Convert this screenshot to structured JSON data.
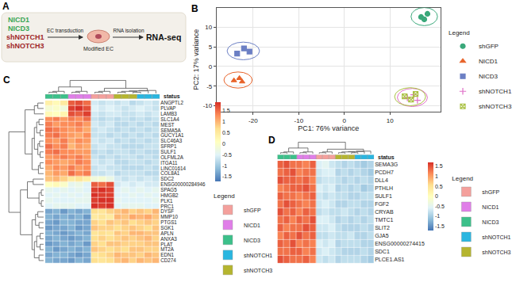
{
  "diagram": {
    "panel_label": "A",
    "constructs_overexpression": [
      "NICD1",
      "NICD3"
    ],
    "constructs_knockdown": [
      "shNOTCH1",
      "shNOTCH3"
    ],
    "steps": [
      "EC transduction",
      "Modified EC",
      "RNA isolation",
      "RNA-seq"
    ]
  },
  "chart_data": [
    {
      "panel_label": "B",
      "type": "scatter",
      "x_label": "PC1: 76% variance",
      "y_label": "PC2: 17% variance",
      "xlim": [
        -28,
        21
      ],
      "ylim": [
        -11.5,
        15
      ],
      "xticks": [
        -20,
        -10,
        0,
        10
      ],
      "yticks": [
        -10,
        -5,
        0,
        5,
        10
      ],
      "grid": true,
      "legend": "right",
      "legend_title": "Legend",
      "series": [
        {
          "name": "shGFP",
          "color": "#3aa87a",
          "marker": "circle",
          "x": [
            16.8,
            18.2,
            17.5
          ],
          "values": [
            12.6,
            13.4,
            12.0
          ]
        },
        {
          "name": "NICD1",
          "color": "#e8632a",
          "marker": "triangle-up",
          "x": [
            -24.2,
            -23.0,
            -22.4
          ],
          "values": [
            -3.6,
            -3.0,
            -3.9
          ]
        },
        {
          "name": "NICD3",
          "color": "#6b7fc4",
          "marker": "square",
          "x": [
            -23.5,
            -22.0,
            -20.8
          ],
          "values": [
            3.3,
            4.6,
            3.8
          ]
        },
        {
          "name": "shNOTCH1",
          "color": "#e070c8",
          "marker": "cross-thin-open",
          "x": [
            13.8,
            15.2,
            16.0
          ],
          "values": [
            -8.0,
            -7.2,
            -8.6
          ]
        },
        {
          "name": "shNOTCH3",
          "color": "#a8c040",
          "marker": "square-x-open",
          "x": [
            13.2,
            14.6,
            15.6
          ],
          "values": [
            -7.6,
            -8.4,
            -7.0
          ]
        }
      ]
    },
    {
      "panel_label": "C",
      "type": "heatmap",
      "status_label": "status",
      "legend_title": "Legend",
      "rows": [
        "ANGPTL2",
        "PLVAP",
        "LAMB3",
        "SLC1A4",
        "MEST",
        "SEMA5A",
        "GUCY1A1",
        "SLC46A3",
        "SFRP1",
        "SULF1",
        "OLFML2A",
        "ITGA11",
        "LINC01614",
        "COL8A1",
        "SDC2",
        "ENSG00000284946",
        "SPAG5",
        "HMGB2",
        "PLK1",
        "PRC1",
        "DYSF",
        "MMP10",
        "PTGS1",
        "SGK1",
        "APLN",
        "ANXA3",
        "PLAT",
        "MT2A",
        "EDN1",
        "CD274"
      ],
      "column_status": [
        "NICD3",
        "NICD3",
        "NICD3",
        "NICD1",
        "NICD1",
        "NICD1",
        "shGFP",
        "shGFP",
        "shGFP",
        "shNOTCH3",
        "shNOTCH3",
        "shNOTCH3",
        "shNOTCH1",
        "shNOTCH1",
        "shNOTCH1"
      ],
      "series": [
        {
          "name": "shGFP",
          "color": "#f4a09c"
        },
        {
          "name": "NICD1",
          "color": "#e07ee8"
        },
        {
          "name": "NICD3",
          "color": "#3cc08a"
        },
        {
          "name": "shNOTCH1",
          "color": "#2ab6e0"
        },
        {
          "name": "shNOTCH3",
          "color": "#b5b52f"
        }
      ],
      "zlim": [
        -1.7,
        1.9
      ],
      "zticks": [
        -1.5,
        -1,
        -0.5,
        0,
        0.5,
        1,
        1.5
      ],
      "cells": [
        [
          0.4,
          0.2,
          0.5,
          1.6,
          1.7,
          1.5,
          -0.6,
          -0.7,
          -0.6,
          -0.7,
          -0.6,
          -0.8,
          -0.7,
          -0.6,
          -0.7
        ],
        [
          -0.1,
          0.0,
          -0.2,
          1.8,
          1.9,
          1.7,
          -0.5,
          -0.6,
          -0.5,
          -0.6,
          -0.7,
          -0.6,
          -0.5,
          -0.6,
          -0.7
        ],
        [
          0.2,
          0.1,
          0.3,
          1.7,
          1.6,
          1.8,
          -0.6,
          -0.7,
          -0.6,
          -0.6,
          -0.7,
          -0.7,
          -0.6,
          -0.7,
          -0.6
        ],
        [
          1.3,
          1.4,
          1.2,
          1.4,
          1.3,
          1.5,
          -0.7,
          -0.8,
          -0.7,
          -0.8,
          -0.7,
          -0.8,
          -0.7,
          -0.8,
          -0.7
        ],
        [
          1.4,
          1.2,
          1.3,
          1.3,
          1.4,
          1.2,
          -0.6,
          -0.7,
          -0.6,
          -0.8,
          -0.8,
          -0.7,
          -0.8,
          -0.7,
          -0.8
        ],
        [
          1.5,
          1.4,
          1.3,
          1.2,
          1.3,
          1.1,
          -0.7,
          -0.6,
          -0.7,
          -0.8,
          -0.7,
          -0.8,
          -0.7,
          -0.8,
          -0.7
        ],
        [
          1.4,
          1.5,
          1.3,
          1.2,
          1.1,
          1.3,
          -0.7,
          -0.7,
          -0.8,
          -0.7,
          -0.8,
          -0.7,
          -0.8,
          -0.7,
          -0.8
        ],
        [
          1.3,
          1.2,
          1.4,
          1.1,
          1.3,
          1.2,
          -0.6,
          -0.7,
          -0.6,
          -0.8,
          -0.7,
          -0.8,
          -0.7,
          -0.8,
          -0.7
        ],
        [
          1.5,
          1.3,
          1.4,
          1.0,
          1.2,
          1.1,
          -0.7,
          -0.6,
          -0.7,
          -0.7,
          -0.8,
          -0.8,
          -0.8,
          -0.7,
          -0.7
        ],
        [
          1.4,
          1.5,
          1.3,
          1.3,
          1.2,
          1.2,
          -0.8,
          -0.7,
          -0.8,
          -0.7,
          -0.7,
          -0.8,
          -0.7,
          -0.8,
          -0.8
        ],
        [
          1.2,
          1.3,
          1.4,
          1.3,
          1.4,
          1.2,
          -0.7,
          -0.8,
          -0.7,
          -0.8,
          -0.7,
          -0.7,
          -0.8,
          -0.7,
          -0.8
        ],
        [
          1.3,
          1.2,
          1.1,
          1.2,
          1.4,
          1.3,
          -0.6,
          -0.7,
          -0.6,
          -0.8,
          -0.8,
          -0.7,
          -0.7,
          -0.8,
          -0.7
        ],
        [
          1.1,
          1.3,
          1.2,
          1.4,
          1.2,
          1.3,
          -0.7,
          -0.6,
          -0.7,
          -0.7,
          -0.8,
          -0.8,
          -0.8,
          -0.7,
          -0.8
        ],
        [
          1.0,
          1.2,
          1.1,
          1.5,
          1.3,
          1.4,
          -0.7,
          -0.7,
          -0.6,
          -0.8,
          -0.7,
          -0.7,
          -0.7,
          -0.8,
          -0.8
        ],
        [
          0.9,
          1.0,
          0.8,
          0.5,
          0.6,
          0.4,
          -0.2,
          -0.1,
          -0.3,
          -0.6,
          -0.7,
          -0.6,
          -0.7,
          -0.6,
          -0.7
        ],
        [
          0.1,
          0.2,
          0.0,
          -0.4,
          -0.3,
          -0.5,
          1.6,
          1.5,
          1.7,
          -0.6,
          -0.5,
          -0.6,
          -0.5,
          -0.6,
          -0.6
        ],
        [
          -0.4,
          -0.5,
          -0.4,
          -0.5,
          -0.4,
          -0.5,
          1.8,
          1.9,
          1.8,
          -0.5,
          -0.4,
          -0.5,
          -0.4,
          -0.5,
          -0.4
        ],
        [
          -0.5,
          -0.4,
          -0.5,
          -0.4,
          -0.5,
          -0.4,
          1.9,
          1.8,
          1.8,
          -0.5,
          -0.5,
          -0.4,
          -0.5,
          -0.4,
          -0.5
        ],
        [
          -0.4,
          -0.5,
          -0.5,
          -0.5,
          -0.4,
          -0.4,
          1.8,
          1.9,
          1.9,
          -0.4,
          -0.5,
          -0.5,
          -0.5,
          -0.5,
          -0.4
        ],
        [
          -0.5,
          -0.4,
          -0.4,
          -0.4,
          -0.5,
          -0.5,
          1.9,
          1.8,
          1.9,
          -0.5,
          -0.4,
          -0.4,
          -0.4,
          -0.5,
          -0.5
        ],
        [
          -1.3,
          -1.2,
          -1.4,
          -1.2,
          -1.3,
          -1.2,
          0.7,
          0.6,
          0.8,
          0.9,
          1.0,
          0.8,
          0.9,
          0.8,
          1.0
        ],
        [
          -1.2,
          -1.3,
          -1.2,
          -1.3,
          -1.2,
          -1.4,
          0.5,
          0.6,
          0.5,
          1.0,
          0.9,
          1.1,
          1.0,
          1.1,
          0.9
        ],
        [
          -1.3,
          -1.4,
          -1.2,
          -1.2,
          -1.3,
          -1.3,
          0.8,
          0.7,
          0.9,
          0.8,
          0.9,
          0.7,
          0.8,
          0.9,
          0.8
        ],
        [
          -1.4,
          -1.3,
          -1.3,
          -1.2,
          -1.4,
          -1.3,
          0.9,
          0.8,
          0.8,
          0.7,
          0.8,
          0.9,
          0.8,
          0.7,
          0.9
        ],
        [
          -1.2,
          -1.3,
          -1.4,
          -1.3,
          -1.2,
          -1.3,
          0.6,
          0.7,
          0.6,
          0.9,
          0.8,
          1.0,
          1.0,
          0.9,
          0.9
        ],
        [
          -1.3,
          -1.2,
          -1.3,
          -1.4,
          -1.3,
          -1.2,
          0.7,
          0.8,
          0.7,
          0.8,
          0.9,
          0.8,
          0.9,
          1.0,
          0.8
        ],
        [
          -1.4,
          -1.3,
          -1.2,
          -1.3,
          -1.2,
          -1.4,
          0.8,
          0.7,
          0.9,
          0.9,
          0.8,
          0.8,
          0.8,
          0.9,
          0.9
        ],
        [
          -1.2,
          -1.4,
          -1.3,
          -1.2,
          -1.3,
          -1.2,
          0.9,
          0.8,
          0.7,
          0.8,
          0.7,
          0.9,
          0.9,
          0.8,
          0.8
        ],
        [
          -1.3,
          -1.2,
          -1.2,
          -1.3,
          -1.4,
          -1.3,
          0.6,
          0.7,
          0.8,
          1.0,
          0.9,
          0.9,
          0.8,
          1.0,
          0.9
        ],
        [
          -1.2,
          -1.3,
          -1.3,
          -1.4,
          -1.2,
          -1.3,
          0.7,
          0.6,
          0.7,
          0.9,
          1.0,
          0.8,
          1.0,
          0.9,
          1.0
        ]
      ],
      "column_tree": [
        [
          0,
          1,
          0.3
        ],
        [
          15,
          2,
          0.5
        ],
        [
          3,
          4,
          0.3
        ],
        [
          17,
          5,
          0.5
        ],
        [
          16,
          18,
          1.5
        ],
        [
          6,
          7,
          0.3
        ],
        [
          20,
          8,
          0.5
        ],
        [
          9,
          10,
          0.3
        ],
        [
          11,
          12,
          0.3
        ],
        [
          22,
          23,
          0.5
        ],
        [
          24,
          13,
          0.6
        ],
        [
          25,
          14,
          0.7
        ],
        [
          21,
          26,
          1.2
        ],
        [
          19,
          27,
          3.0
        ]
      ],
      "row_tree": [
        [
          0,
          1,
          0.5
        ],
        [
          30,
          2,
          0.8
        ],
        [
          3,
          4,
          0.4
        ],
        [
          5,
          6,
          0.3
        ],
        [
          32,
          33,
          0.6
        ],
        [
          7,
          8,
          0.35
        ],
        [
          9,
          10,
          0.3
        ],
        [
          35,
          36,
          0.5
        ],
        [
          34,
          37,
          0.8
        ],
        [
          11,
          12,
          0.3
        ],
        [
          39,
          13,
          0.45
        ],
        [
          38,
          40,
          1.0
        ],
        [
          31,
          41,
          1.6
        ],
        [
          14,
          15,
          0.9
        ],
        [
          16,
          17,
          0.2
        ],
        [
          18,
          19,
          0.2
        ],
        [
          44,
          45,
          0.4
        ],
        [
          43,
          46,
          1.4
        ],
        [
          20,
          21,
          0.5
        ],
        [
          22,
          23,
          0.4
        ],
        [
          48,
          49,
          0.7
        ],
        [
          24,
          25,
          0.3
        ],
        [
          26,
          27,
          0.3
        ],
        [
          51,
          52,
          0.6
        ],
        [
          28,
          29,
          0.4
        ],
        [
          53,
          54,
          0.8
        ],
        [
          50,
          55,
          1.0
        ],
        [
          47,
          56,
          2.0
        ],
        [
          42,
          57,
          3.0
        ]
      ]
    },
    {
      "panel_label": "D",
      "type": "heatmap",
      "status_label": "status",
      "legend_title": "Legend",
      "rows": [
        "SEMA3G",
        "PCDH7",
        "DLL4",
        "PTHLH",
        "SULF1",
        "FGF2",
        "CRYAB",
        "TMTC1",
        "SLIT2",
        "GJA5",
        "ENSG00000274415",
        "SDC1",
        "PLCE1.AS1"
      ],
      "column_status": [
        "NICD3",
        "NICD3",
        "NICD3",
        "NICD1",
        "NICD1",
        "NICD1",
        "shGFP",
        "shGFP",
        "shGFP",
        "shNOTCH3",
        "shNOTCH3",
        "shNOTCH3",
        "shNOTCH1",
        "shNOTCH1",
        "shNOTCH1"
      ],
      "series": [
        {
          "name": "shGFP",
          "color": "#f4a09c"
        },
        {
          "name": "NICD1",
          "color": "#e07ee8"
        },
        {
          "name": "NICD3",
          "color": "#3cc08a"
        },
        {
          "name": "shNOTCH1",
          "color": "#2ab6e0"
        },
        {
          "name": "shNOTCH3",
          "color": "#b5b52f"
        }
      ],
      "zlim": [
        -1.7,
        1.7
      ],
      "zticks": [
        -1.5,
        -1,
        -0.5,
        0,
        0.5,
        1,
        1.5
      ],
      "cells": [
        [
          1.4,
          1.5,
          1.3,
          1.3,
          1.2,
          1.4,
          -0.6,
          -0.5,
          -0.7,
          -0.8,
          -0.9,
          -0.8,
          -0.9,
          -1.0,
          -0.9
        ],
        [
          1.3,
          1.4,
          1.5,
          1.2,
          1.3,
          1.3,
          -0.7,
          -0.6,
          -0.6,
          -0.9,
          -0.8,
          -0.9,
          -0.8,
          -0.9,
          -1.0
        ],
        [
          1.5,
          1.4,
          1.4,
          1.3,
          1.4,
          1.2,
          -0.8,
          -0.7,
          -0.7,
          -0.8,
          -0.9,
          -0.8,
          -0.9,
          -0.8,
          -0.9
        ],
        [
          1.2,
          1.3,
          1.4,
          1.4,
          1.5,
          1.3,
          -0.6,
          -0.7,
          -0.6,
          -0.9,
          -0.8,
          -0.9,
          -0.8,
          -1.0,
          -0.9
        ],
        [
          1.4,
          1.3,
          1.3,
          1.2,
          1.3,
          1.4,
          -0.7,
          -0.8,
          -0.7,
          -0.8,
          -0.8,
          -0.9,
          -0.9,
          -0.8,
          -0.8
        ],
        [
          1.3,
          1.5,
          1.4,
          1.3,
          1.2,
          1.3,
          -0.7,
          -0.6,
          -0.7,
          -0.9,
          -0.9,
          -0.8,
          -0.8,
          -0.9,
          -0.9
        ],
        [
          1.5,
          1.3,
          1.4,
          1.2,
          1.4,
          1.3,
          -0.8,
          -0.7,
          -0.8,
          -0.8,
          -0.7,
          -0.8,
          -0.9,
          -0.8,
          -0.9
        ],
        [
          1.3,
          1.4,
          1.2,
          1.4,
          1.3,
          1.5,
          -0.6,
          -0.6,
          -0.7,
          -0.9,
          -0.8,
          -0.9,
          -0.8,
          -0.9,
          -0.8
        ],
        [
          1.4,
          1.2,
          1.3,
          1.3,
          1.5,
          1.4,
          -0.7,
          -0.7,
          -0.6,
          -0.8,
          -0.9,
          -0.9,
          -0.9,
          -0.8,
          -0.9
        ],
        [
          1.2,
          1.4,
          1.3,
          1.5,
          1.3,
          1.4,
          -0.8,
          -0.8,
          -0.7,
          -0.8,
          -0.8,
          -0.7,
          -0.9,
          -0.9,
          -0.8
        ],
        [
          1.4,
          1.3,
          1.5,
          1.2,
          1.3,
          1.2,
          -0.6,
          -0.7,
          -0.6,
          -0.9,
          -0.8,
          -0.8,
          -0.8,
          -0.9,
          -0.9
        ],
        [
          1.3,
          1.3,
          1.4,
          1.4,
          1.2,
          1.3,
          -0.7,
          -0.6,
          -0.7,
          -0.8,
          -0.9,
          -0.9,
          -0.9,
          -0.8,
          -0.9
        ],
        [
          1.5,
          1.4,
          1.3,
          1.3,
          1.4,
          1.2,
          -0.7,
          -0.8,
          -0.7,
          -0.9,
          -0.8,
          -0.8,
          -0.8,
          -0.9,
          -1.0
        ]
      ],
      "column_tree": [
        [
          0,
          1,
          0.3
        ],
        [
          15,
          2,
          0.5
        ],
        [
          3,
          4,
          0.3
        ],
        [
          17,
          5,
          0.5
        ],
        [
          16,
          18,
          1.5
        ],
        [
          6,
          7,
          0.3
        ],
        [
          20,
          8,
          0.5
        ],
        [
          9,
          10,
          0.3
        ],
        [
          11,
          12,
          0.3
        ],
        [
          22,
          23,
          0.5
        ],
        [
          24,
          13,
          0.6
        ],
        [
          25,
          14,
          0.7
        ],
        [
          21,
          26,
          1.2
        ],
        [
          19,
          27,
          3.0
        ]
      ]
    }
  ]
}
